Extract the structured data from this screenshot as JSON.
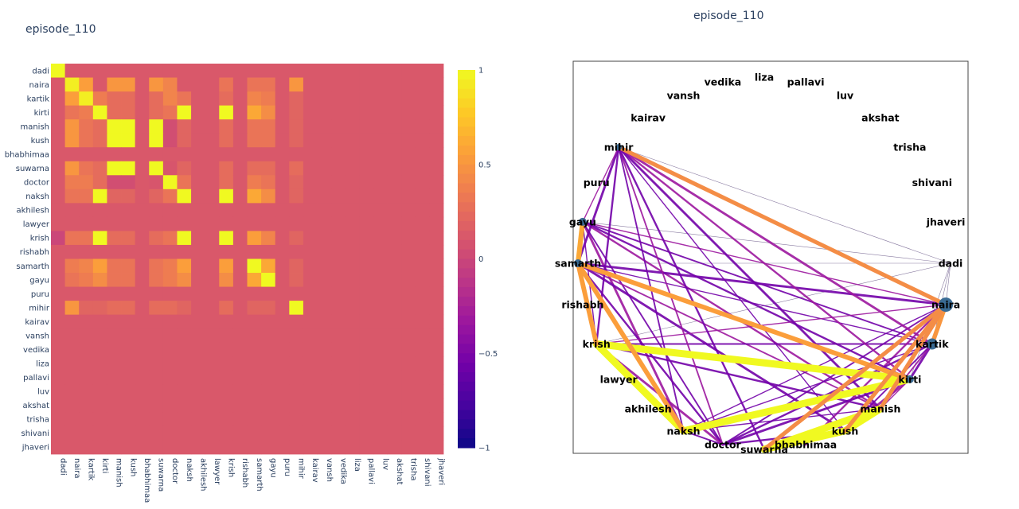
{
  "chart_data": [
    {
      "type": "heatmap",
      "title": "episode_110",
      "characters": [
        "dadi",
        "naira",
        "kartik",
        "kirti",
        "manish",
        "kush",
        "bhabhimaa",
        "suwarna",
        "doctor",
        "naksh",
        "akhilesh",
        "lawyer",
        "krish",
        "rishabh",
        "samarth",
        "gayu",
        "puru",
        "mihir",
        "kairav",
        "vansh",
        "vedika",
        "liza",
        "pallavi",
        "luv",
        "akshat",
        "trisha",
        "shivani",
        "jhaveri"
      ],
      "zrange": [
        -1,
        1
      ],
      "colorbar_ticks": [
        1,
        0.5,
        0,
        -0.5,
        -1
      ],
      "colorbar_tick_labels": [
        "1",
        "0.5",
        "0",
        "−0.5",
        "−1"
      ],
      "colorscale": [
        "#0d0887",
        "#46039f",
        "#7201a8",
        "#9c179e",
        "#bd3786",
        "#d8576b",
        "#ed7953",
        "#fb9f3a",
        "#fdca26",
        "#f0f921"
      ],
      "default_value": 0.12,
      "cells": [
        [
          0,
          0,
          1
        ],
        [
          1,
          1,
          0.95
        ],
        [
          1,
          2,
          0.55
        ],
        [
          1,
          4,
          0.5
        ],
        [
          1,
          5,
          0.5
        ],
        [
          1,
          7,
          0.5
        ],
        [
          1,
          8,
          0.4
        ],
        [
          1,
          12,
          0.3
        ],
        [
          1,
          14,
          0.3
        ],
        [
          1,
          15,
          0.3
        ],
        [
          1,
          17,
          0.5
        ],
        [
          2,
          1,
          0.55
        ],
        [
          2,
          2,
          0.95
        ],
        [
          2,
          3,
          0.35
        ],
        [
          2,
          4,
          0.25
        ],
        [
          2,
          5,
          0.25
        ],
        [
          2,
          7,
          0.25
        ],
        [
          2,
          8,
          0.4
        ],
        [
          2,
          9,
          0.3
        ],
        [
          2,
          12,
          0.25
        ],
        [
          2,
          14,
          0.4
        ],
        [
          2,
          15,
          0.35
        ],
        [
          2,
          17,
          0.2
        ],
        [
          3,
          1,
          0.3
        ],
        [
          3,
          2,
          0.35
        ],
        [
          3,
          3,
          1
        ],
        [
          3,
          4,
          0.25
        ],
        [
          3,
          5,
          0.25
        ],
        [
          3,
          7,
          0.25
        ],
        [
          3,
          8,
          0.3
        ],
        [
          3,
          9,
          1
        ],
        [
          3,
          12,
          1
        ],
        [
          3,
          14,
          0.6
        ],
        [
          3,
          15,
          0.45
        ],
        [
          3,
          17,
          0.2
        ],
        [
          4,
          1,
          0.5
        ],
        [
          4,
          2,
          0.3
        ],
        [
          4,
          3,
          0.25
        ],
        [
          4,
          4,
          1
        ],
        [
          4,
          5,
          1
        ],
        [
          4,
          7,
          1
        ],
        [
          4,
          8,
          0.05
        ],
        [
          4,
          9,
          0.2
        ],
        [
          4,
          12,
          0.25
        ],
        [
          4,
          14,
          0.3
        ],
        [
          4,
          15,
          0.3
        ],
        [
          4,
          17,
          0.2
        ],
        [
          5,
          1,
          0.5
        ],
        [
          5,
          2,
          0.3
        ],
        [
          5,
          3,
          0.25
        ],
        [
          5,
          4,
          1
        ],
        [
          5,
          5,
          1
        ],
        [
          5,
          7,
          1
        ],
        [
          5,
          8,
          0.05
        ],
        [
          5,
          9,
          0.2
        ],
        [
          5,
          12,
          0.25
        ],
        [
          5,
          14,
          0.3
        ],
        [
          5,
          15,
          0.3
        ],
        [
          5,
          17,
          0.2
        ],
        [
          6,
          6,
          0.12
        ],
        [
          7,
          1,
          0.5
        ],
        [
          7,
          2,
          0.3
        ],
        [
          7,
          3,
          0.25
        ],
        [
          7,
          4,
          1
        ],
        [
          7,
          5,
          1
        ],
        [
          7,
          7,
          1
        ],
        [
          7,
          8,
          0.1
        ],
        [
          7,
          9,
          0.2
        ],
        [
          7,
          12,
          0.25
        ],
        [
          7,
          14,
          0.25
        ],
        [
          7,
          15,
          0.25
        ],
        [
          7,
          17,
          0.25
        ],
        [
          8,
          1,
          0.35
        ],
        [
          8,
          2,
          0.35
        ],
        [
          8,
          3,
          0.25
        ],
        [
          8,
          4,
          0.05
        ],
        [
          8,
          5,
          0.05
        ],
        [
          8,
          7,
          0.1
        ],
        [
          8,
          8,
          1
        ],
        [
          8,
          9,
          0.3
        ],
        [
          8,
          12,
          0.25
        ],
        [
          8,
          14,
          0.35
        ],
        [
          8,
          15,
          0.3
        ],
        [
          8,
          17,
          0.2
        ],
        [
          9,
          1,
          0.3
        ],
        [
          9,
          2,
          0.3
        ],
        [
          9,
          3,
          1
        ],
        [
          9,
          4,
          0.2
        ],
        [
          9,
          5,
          0.2
        ],
        [
          9,
          7,
          0.2
        ],
        [
          9,
          8,
          0.3
        ],
        [
          9,
          9,
          1
        ],
        [
          9,
          12,
          1
        ],
        [
          9,
          14,
          0.6
        ],
        [
          9,
          15,
          0.45
        ],
        [
          9,
          17,
          0.2
        ],
        [
          12,
          0,
          0.0
        ],
        [
          12,
          1,
          0.3
        ],
        [
          12,
          2,
          0.3
        ],
        [
          12,
          3,
          1
        ],
        [
          12,
          4,
          0.25
        ],
        [
          12,
          5,
          0.25
        ],
        [
          12,
          7,
          0.25
        ],
        [
          12,
          8,
          0.3
        ],
        [
          12,
          9,
          1
        ],
        [
          12,
          12,
          1
        ],
        [
          12,
          14,
          0.55
        ],
        [
          12,
          15,
          0.4
        ],
        [
          12,
          17,
          0.2
        ],
        [
          14,
          1,
          0.35
        ],
        [
          14,
          2,
          0.4
        ],
        [
          14,
          3,
          0.55
        ],
        [
          14,
          4,
          0.3
        ],
        [
          14,
          5,
          0.3
        ],
        [
          14,
          7,
          0.3
        ],
        [
          14,
          8,
          0.35
        ],
        [
          14,
          9,
          0.55
        ],
        [
          14,
          12,
          0.55
        ],
        [
          14,
          14,
          1
        ],
        [
          14,
          15,
          0.6
        ],
        [
          14,
          17,
          0.2
        ],
        [
          15,
          1,
          0.3
        ],
        [
          15,
          2,
          0.35
        ],
        [
          15,
          3,
          0.45
        ],
        [
          15,
          4,
          0.3
        ],
        [
          15,
          5,
          0.3
        ],
        [
          15,
          7,
          0.3
        ],
        [
          15,
          8,
          0.35
        ],
        [
          15,
          9,
          0.45
        ],
        [
          15,
          12,
          0.45
        ],
        [
          15,
          14,
          0.6
        ],
        [
          15,
          15,
          1
        ],
        [
          15,
          17,
          0.2
        ],
        [
          17,
          1,
          0.5
        ],
        [
          17,
          2,
          0.2
        ],
        [
          17,
          3,
          0.2
        ],
        [
          17,
          4,
          0.25
        ],
        [
          17,
          5,
          0.25
        ],
        [
          17,
          7,
          0.25
        ],
        [
          17,
          8,
          0.25
        ],
        [
          17,
          9,
          0.2
        ],
        [
          17,
          12,
          0.25
        ],
        [
          17,
          14,
          0.2
        ],
        [
          17,
          15,
          0.2
        ],
        [
          17,
          17,
          1
        ]
      ]
    },
    {
      "type": "network",
      "title": "episode_110",
      "nodes": [
        "dadi",
        "naira",
        "kartik",
        "kirti",
        "manish",
        "kush",
        "bhabhimaa",
        "suwarna",
        "doctor",
        "naksh",
        "akhilesh",
        "lawyer",
        "krish",
        "rishabh",
        "samarth",
        "gayu",
        "puru",
        "mihir",
        "kairav",
        "vansh",
        "vedika",
        "liza",
        "pallavi",
        "luv",
        "akshat",
        "trisha",
        "shivani",
        "jhaveri"
      ],
      "node_sizes": {
        "naira": 9,
        "kartik": 7,
        "kirti": 5,
        "gayu": 5,
        "samarth": 5,
        "mihir": 4
      },
      "node_color": "#3a6b94",
      "strong_edges": [
        [
          "naksh",
          "kirti",
          1
        ],
        [
          "krish",
          "kirti",
          1
        ],
        [
          "krish",
          "naksh",
          1
        ],
        [
          "manish",
          "kush",
          1
        ],
        [
          "kush",
          "suwarna",
          1
        ],
        [
          "manish",
          "suwarna",
          1
        ],
        [
          "samarth",
          "gayu",
          0.6
        ],
        [
          "samarth",
          "kirti",
          0.55
        ],
        [
          "samarth",
          "krish",
          0.55
        ],
        [
          "samarth",
          "naksh",
          0.55
        ],
        [
          "naira",
          "mihir",
          0.45
        ],
        [
          "naira",
          "kartik",
          0.5
        ],
        [
          "naira",
          "kush",
          0.45
        ],
        [
          "naira",
          "manish",
          0.45
        ],
        [
          "naira",
          "suwarna",
          0.45
        ]
      ],
      "mid_edges": [
        [
          "gayu",
          "naira"
        ],
        [
          "gayu",
          "kartik"
        ],
        [
          "gayu",
          "kirti"
        ],
        [
          "gayu",
          "naksh"
        ],
        [
          "gayu",
          "krish"
        ],
        [
          "gayu",
          "doctor"
        ],
        [
          "gayu",
          "manish"
        ],
        [
          "samarth",
          "naira"
        ],
        [
          "samarth",
          "kartik"
        ],
        [
          "samarth",
          "manish"
        ],
        [
          "samarth",
          "doctor"
        ],
        [
          "samarth",
          "kush"
        ],
        [
          "krish",
          "naira"
        ],
        [
          "krish",
          "kartik"
        ],
        [
          "krish",
          "manish"
        ],
        [
          "krish",
          "doctor"
        ],
        [
          "naira",
          "naksh"
        ],
        [
          "naira",
          "doctor"
        ],
        [
          "naira",
          "bhabhimaa"
        ],
        [
          "kartik",
          "kirti"
        ],
        [
          "kartik",
          "naksh"
        ],
        [
          "kartik",
          "manish"
        ],
        [
          "kartik",
          "doctor"
        ],
        [
          "kirti",
          "doctor"
        ],
        [
          "kirti",
          "manish"
        ],
        [
          "naksh",
          "doctor"
        ],
        [
          "doctor",
          "kush"
        ],
        [
          "kirti",
          "kush"
        ],
        [
          "naksh",
          "manish"
        ],
        [
          "kartik",
          "kush"
        ],
        [
          "mihir",
          "kirti"
        ],
        [
          "mihir",
          "manish"
        ],
        [
          "mihir",
          "kush"
        ],
        [
          "mihir",
          "doctor"
        ],
        [
          "mihir",
          "krish"
        ],
        [
          "mihir",
          "samarth"
        ],
        [
          "mihir",
          "gayu"
        ],
        [
          "mihir",
          "naksh"
        ],
        [
          "mihir",
          "suwarna"
        ],
        [
          "mihir",
          "kartik"
        ]
      ],
      "thin_edges": [
        [
          "dadi",
          "krish"
        ],
        [
          "dadi",
          "naira"
        ],
        [
          "dadi",
          "mihir"
        ],
        [
          "dadi",
          "gayu"
        ],
        [
          "dadi",
          "samarth"
        ],
        [
          "dadi",
          "kartik"
        ],
        [
          "dadi",
          "kirti"
        ]
      ]
    }
  ]
}
